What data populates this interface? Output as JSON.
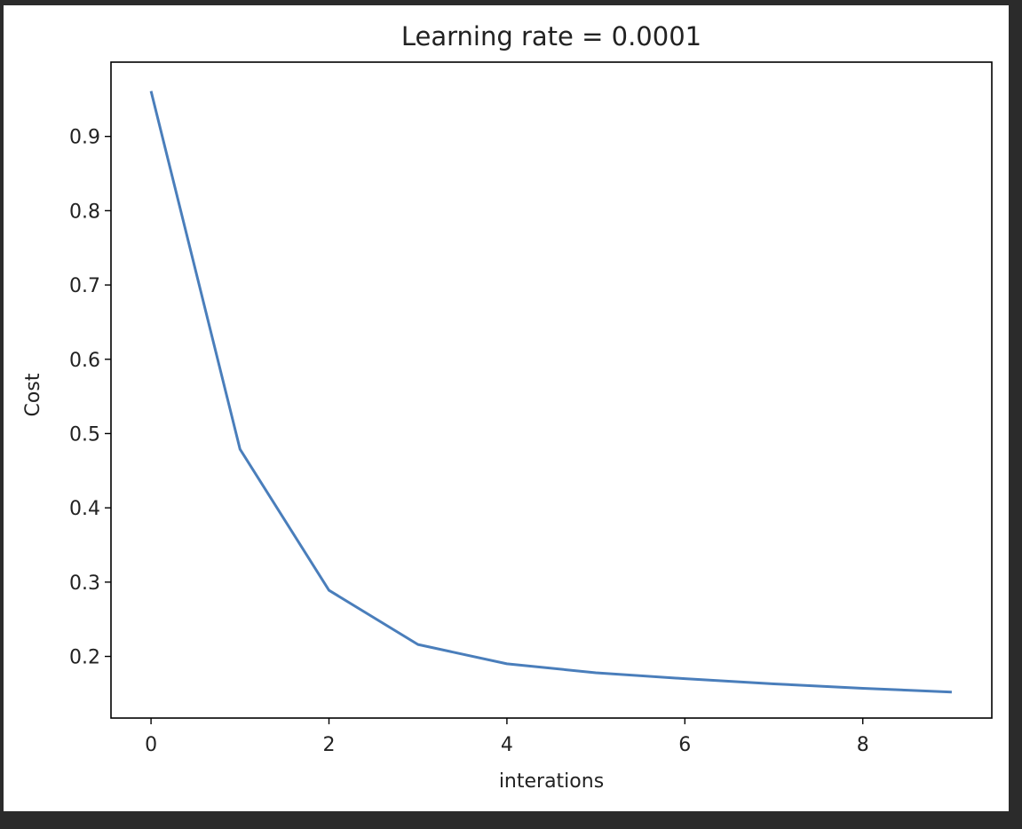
{
  "chart_data": {
    "type": "line",
    "title": "Learning rate = 0.0001",
    "xlabel": "interations",
    "ylabel": "Cost",
    "x": [
      0,
      1,
      2,
      3,
      4,
      5,
      6,
      7,
      8,
      9
    ],
    "series": [
      {
        "color": "#4a7ebb",
        "values": [
          0.961,
          0.479,
          0.289,
          0.216,
          0.19,
          0.178,
          0.17,
          0.163,
          0.157,
          0.152
        ]
      }
    ],
    "xlim": [
      -0.45,
      9.45
    ],
    "ylim": [
      0.117,
      1.0
    ],
    "xticks": [
      0,
      2,
      4,
      6,
      8
    ],
    "xtick_labels": [
      "0",
      "2",
      "4",
      "6",
      "8"
    ],
    "yticks": [
      0.2,
      0.3,
      0.4,
      0.5,
      0.6,
      0.7,
      0.8,
      0.9
    ],
    "ytick_labels": [
      "0.2",
      "0.3",
      "0.4",
      "0.5",
      "0.6",
      "0.7",
      "0.8",
      "0.9"
    ],
    "grid": false
  }
}
